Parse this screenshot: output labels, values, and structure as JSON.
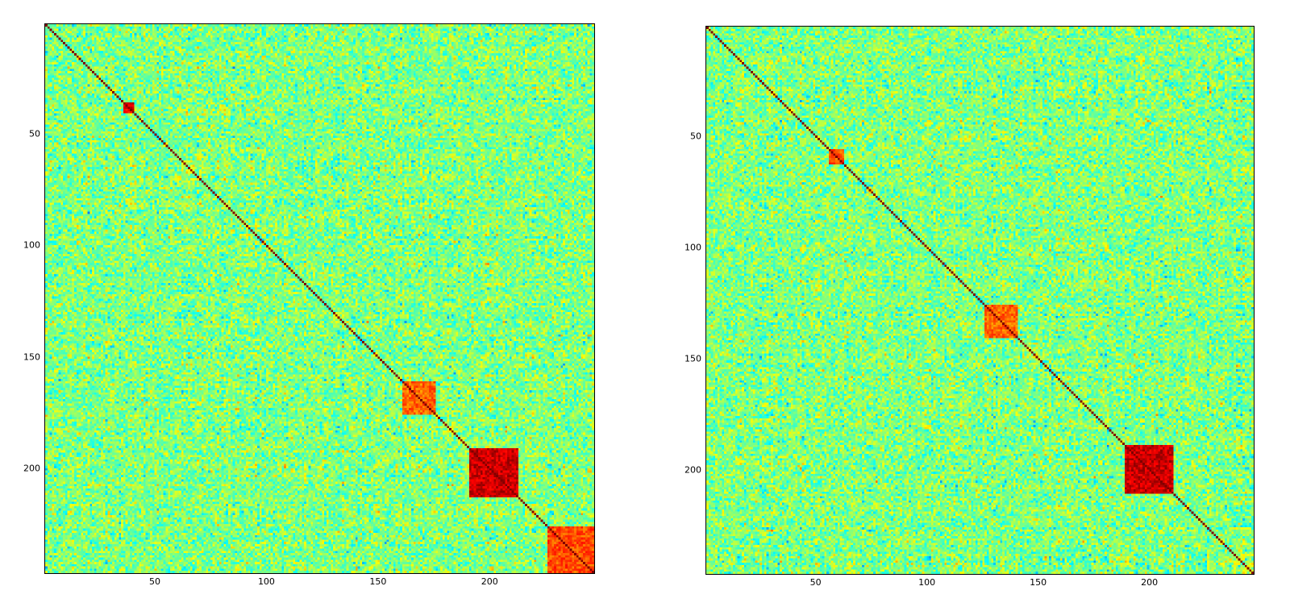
{
  "figure": {
    "charts": [
      "Left correlation matrix",
      "Right correlation matrix"
    ]
  },
  "chart_data": [
    {
      "type": "heatmap",
      "title": "",
      "xlabel": "",
      "ylabel": "",
      "size": 246,
      "colormap": "jet",
      "value_range": [
        -1,
        1
      ],
      "x_ticks": [
        50,
        100,
        150,
        200
      ],
      "y_ticks": [
        50,
        100,
        150,
        200
      ],
      "x_tick_labels": [
        "50",
        "100",
        "150",
        "200"
      ],
      "y_tick_labels": [
        "50",
        "100",
        "150",
        "200"
      ],
      "diagonal_value": 1.0,
      "blocks": [
        {
          "range": [
            190,
            212
          ],
          "value": 0.85
        },
        {
          "range": [
            225,
            246
          ],
          "value": 0.6
        },
        {
          "range": [
            35,
            40
          ],
          "value": 0.8
        },
        {
          "range": [
            160,
            175
          ],
          "value": 0.55
        }
      ],
      "grid": false,
      "legend": "none"
    },
    {
      "type": "heatmap",
      "title": "",
      "xlabel": "",
      "ylabel": "",
      "size": 246,
      "colormap": "jet",
      "value_range": [
        -1,
        1
      ],
      "x_ticks": [
        50,
        100,
        150,
        200
      ],
      "y_ticks": [
        50,
        100,
        150,
        200
      ],
      "x_tick_labels": [
        "50",
        "100",
        "150",
        "200"
      ],
      "y_tick_labels": [
        "50",
        "100",
        "150",
        "200"
      ],
      "diagonal_value": 1.0,
      "blocks": [
        {
          "range": [
            188,
            210
          ],
          "value": 0.85
        },
        {
          "range": [
            125,
            140
          ],
          "value": 0.55
        },
        {
          "range": [
            55,
            62
          ],
          "value": 0.6
        }
      ],
      "grid": false,
      "legend": "none"
    }
  ]
}
